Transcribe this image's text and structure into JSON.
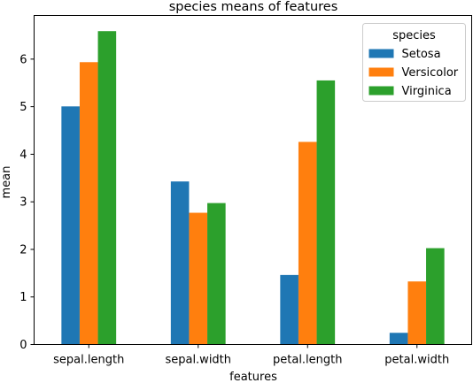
{
  "chart_data": {
    "type": "bar",
    "title": "species means of features",
    "xlabel": "features",
    "ylabel": "mean",
    "categories": [
      "sepal.length",
      "sepal.width",
      "petal.length",
      "petal.width"
    ],
    "series": [
      {
        "name": "Setosa",
        "color": "#1f77b4",
        "values": [
          5.006,
          3.428,
          1.462,
          0.246
        ]
      },
      {
        "name": "Versicolor",
        "color": "#ff7f0e",
        "values": [
          5.936,
          2.77,
          4.26,
          1.326
        ]
      },
      {
        "name": "Virginica",
        "color": "#2ca02c",
        "values": [
          6.588,
          2.974,
          5.552,
          2.026
        ]
      }
    ],
    "ylim": [
      0,
      6.9174
    ],
    "yticks": [
      0,
      1,
      2,
      3,
      4,
      5,
      6
    ],
    "legend": {
      "title": "species",
      "position": "top-right"
    },
    "grid": false
  }
}
